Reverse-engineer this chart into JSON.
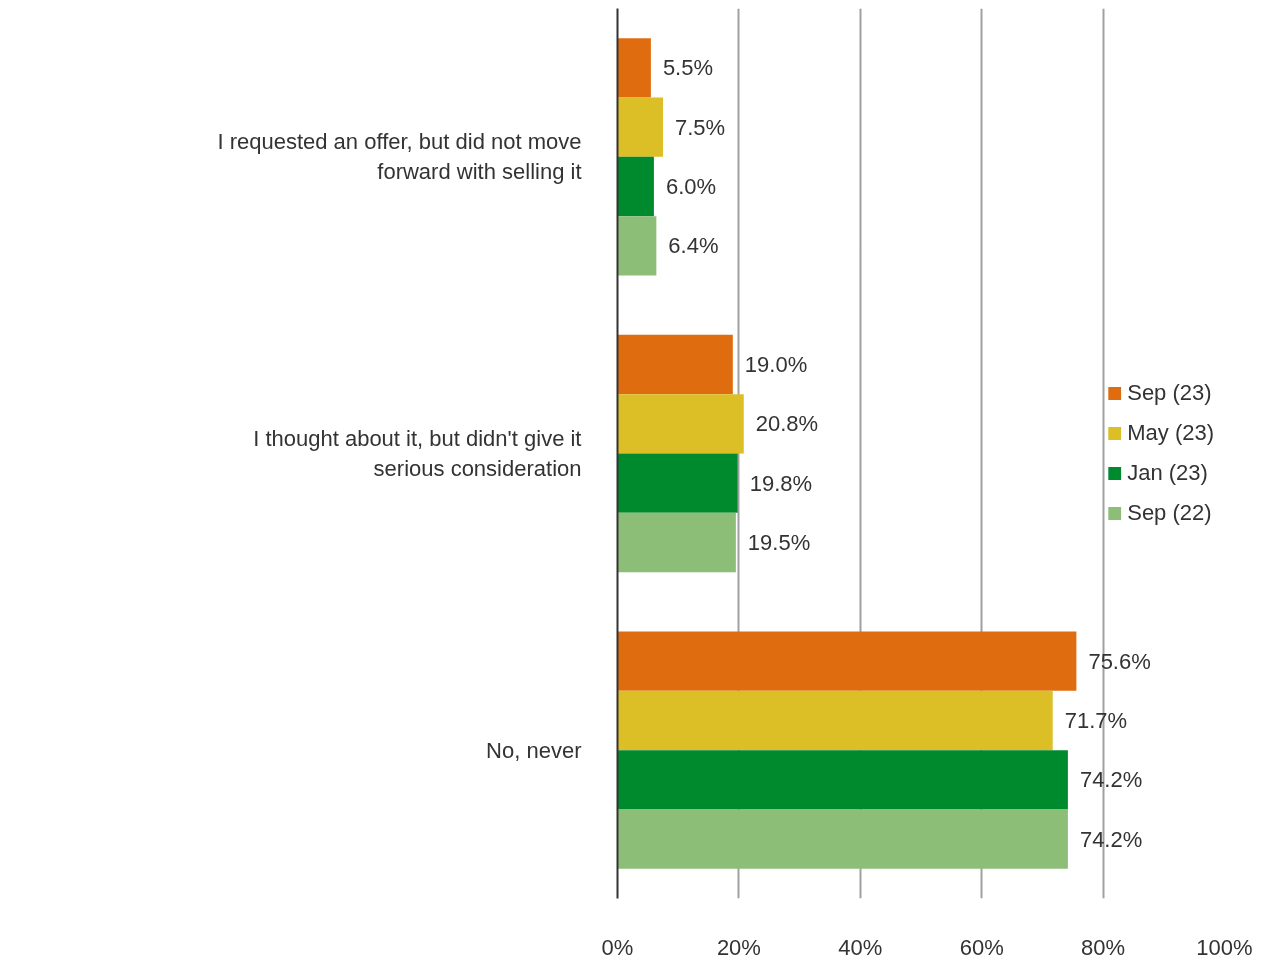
{
  "chart_data": {
    "type": "bar",
    "orientation": "horizontal",
    "categories": [
      "I requested an offer, but did not move forward with selling it",
      "I thought about it, but didn't give it serious consideration",
      "No, never"
    ],
    "series": [
      {
        "name": "Sep (23)",
        "color": "#e06c10",
        "values": [
          5.5,
          19.0,
          75.6
        ],
        "value_labels": [
          "5.5%",
          "19.0%",
          "75.6%"
        ]
      },
      {
        "name": "May (23)",
        "color": "#dcbe26",
        "values": [
          7.5,
          20.8,
          71.7
        ],
        "value_labels": [
          "7.5%",
          "20.8%",
          "71.7%"
        ]
      },
      {
        "name": "Jan (23)",
        "color": "#008a2e",
        "values": [
          6.0,
          19.8,
          74.2
        ],
        "value_labels": [
          "6.0%",
          "19.8%",
          "74.2%"
        ]
      },
      {
        "name": "Sep (22)",
        "color": "#8cbe78",
        "values": [
          6.4,
          19.5,
          74.2
        ],
        "value_labels": [
          "6.4%",
          "19.5%",
          "74.2%"
        ]
      }
    ],
    "xlim": [
      0,
      100
    ],
    "xticks": [
      {
        "value": 0,
        "label": "0%"
      },
      {
        "value": 20,
        "label": "20%"
      },
      {
        "value": 40,
        "label": "40%"
      },
      {
        "value": 60,
        "label": "60%"
      },
      {
        "value": 80,
        "label": "80%"
      },
      {
        "value": 100,
        "label": "100%"
      }
    ],
    "grid": "x",
    "legend": "right"
  }
}
